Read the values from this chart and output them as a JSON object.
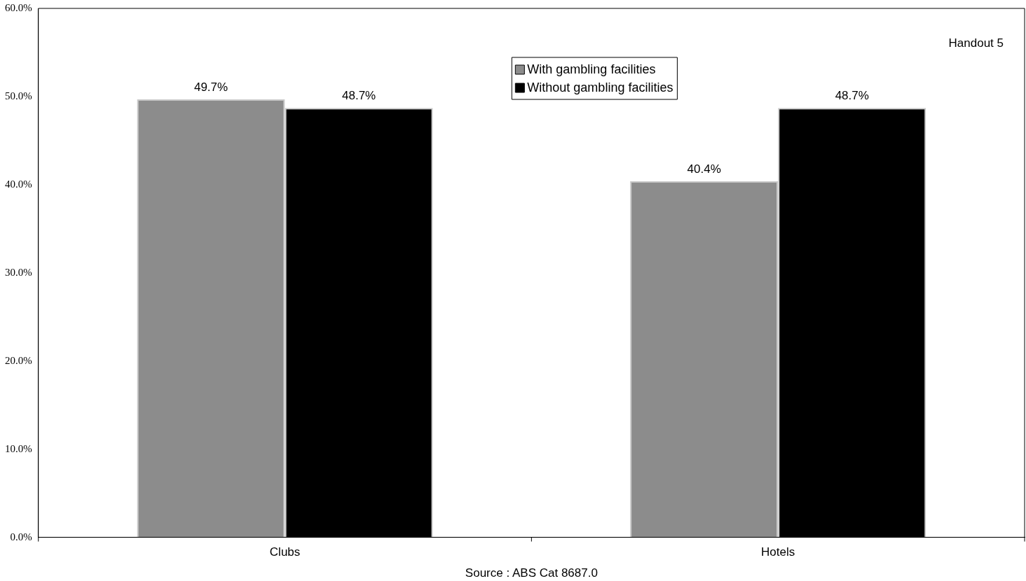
{
  "chart_data": {
    "type": "bar",
    "categories": [
      "Clubs",
      "Hotels"
    ],
    "series": [
      {
        "name": "With gambling facilities",
        "color": "#8c8c8c",
        "values": [
          49.7,
          40.4
        ],
        "value_labels": [
          "49.7%",
          "40.4%"
        ]
      },
      {
        "name": "Without gambling facilities",
        "color": "#000000",
        "values": [
          48.7,
          48.7
        ],
        "value_labels": [
          "48.7%",
          "48.7%"
        ]
      }
    ],
    "ylim": [
      0,
      60
    ],
    "yticks": [
      {
        "value": 0,
        "label": "0.0%"
      },
      {
        "value": 10,
        "label": "10.0%"
      },
      {
        "value": 20,
        "label": "20.0%"
      },
      {
        "value": 30,
        "label": "30.0%"
      },
      {
        "value": 40,
        "label": "40.0%"
      },
      {
        "value": 50,
        "label": "50.0%"
      },
      {
        "value": 60,
        "label": "60.0%"
      }
    ],
    "grid": false,
    "legend": "top",
    "annotations": [
      "Handout 5",
      "Source : ABS Cat 8687.0"
    ]
  }
}
